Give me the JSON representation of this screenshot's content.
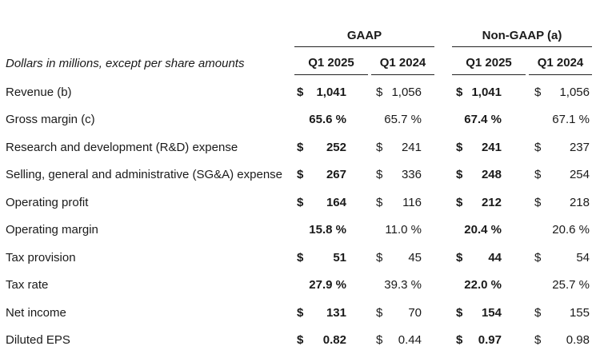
{
  "header": {
    "gaap": "GAAP",
    "non_gaap": "Non-GAAP (a)",
    "caption": "Dollars in millions, except per share amounts",
    "cols": [
      "Q1 2025",
      "Q1 2024",
      "Q1 2025",
      "Q1 2024"
    ]
  },
  "rows": [
    {
      "label": "Revenue (b)",
      "cells": [
        {
          "sym": "$",
          "val": "1,041"
        },
        {
          "sym": "$",
          "val": "1,056"
        },
        {
          "sym": "$",
          "val": "1,041"
        },
        {
          "sym": "$",
          "val": "1,056"
        }
      ]
    },
    {
      "label": "Gross margin (c)",
      "cells": [
        {
          "sym": "",
          "val": "65.6 %"
        },
        {
          "sym": "",
          "val": "65.7 %"
        },
        {
          "sym": "",
          "val": "67.4 %"
        },
        {
          "sym": "",
          "val": "67.1 %"
        }
      ]
    },
    {
      "label": "Research and development (R&D) expense",
      "cells": [
        {
          "sym": "$",
          "val": "252"
        },
        {
          "sym": "$",
          "val": "241"
        },
        {
          "sym": "$",
          "val": "241"
        },
        {
          "sym": "$",
          "val": "237"
        }
      ]
    },
    {
      "label": "Selling, general and administrative (SG&A) expense",
      "cells": [
        {
          "sym": "$",
          "val": "267"
        },
        {
          "sym": "$",
          "val": "336"
        },
        {
          "sym": "$",
          "val": "248"
        },
        {
          "sym": "$",
          "val": "254"
        }
      ]
    },
    {
      "label": "Operating profit",
      "cells": [
        {
          "sym": "$",
          "val": "164"
        },
        {
          "sym": "$",
          "val": "116"
        },
        {
          "sym": "$",
          "val": "212"
        },
        {
          "sym": "$",
          "val": "218"
        }
      ]
    },
    {
      "label": "Operating margin",
      "cells": [
        {
          "sym": "",
          "val": "15.8 %"
        },
        {
          "sym": "",
          "val": "11.0 %"
        },
        {
          "sym": "",
          "val": "20.4 %"
        },
        {
          "sym": "",
          "val": "20.6 %"
        }
      ]
    },
    {
      "label": "Tax provision",
      "cells": [
        {
          "sym": "$",
          "val": "51"
        },
        {
          "sym": "$",
          "val": "45"
        },
        {
          "sym": "$",
          "val": "44"
        },
        {
          "sym": "$",
          "val": "54"
        }
      ]
    },
    {
      "label": "Tax rate",
      "cells": [
        {
          "sym": "",
          "val": "27.9 %"
        },
        {
          "sym": "",
          "val": "39.3 %"
        },
        {
          "sym": "",
          "val": "22.0 %"
        },
        {
          "sym": "",
          "val": "25.7 %"
        }
      ]
    },
    {
      "label": "Net income",
      "cells": [
        {
          "sym": "$",
          "val": "131"
        },
        {
          "sym": "$",
          "val": "70"
        },
        {
          "sym": "$",
          "val": "154"
        },
        {
          "sym": "$",
          "val": "155"
        }
      ]
    },
    {
      "label": "Diluted EPS",
      "cells": [
        {
          "sym": "$",
          "val": "0.82"
        },
        {
          "sym": "$",
          "val": "0.44"
        },
        {
          "sym": "$",
          "val": "0.97"
        },
        {
          "sym": "$",
          "val": "0.98"
        }
      ]
    }
  ]
}
